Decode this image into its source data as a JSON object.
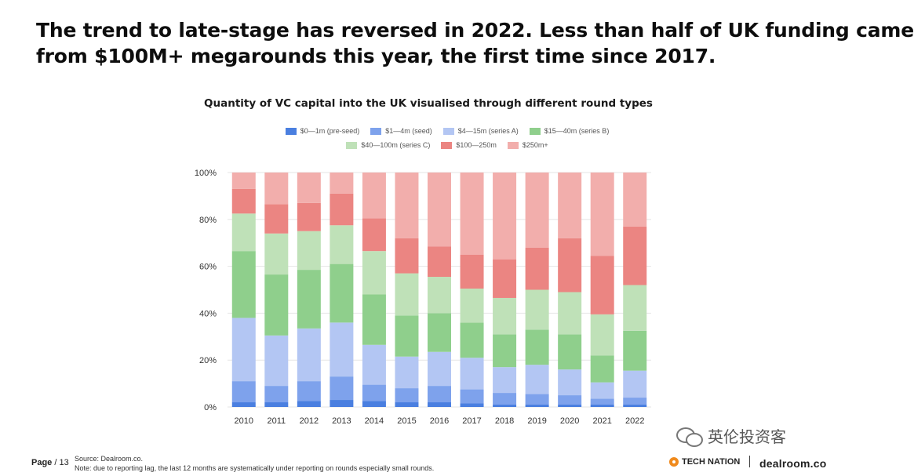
{
  "headline": {
    "line1": "The trend to late-stage has reversed in 2022. Less than half of UK funding came",
    "line2": "from $100M+ megarounds this year, the first time since 2017."
  },
  "footer": {
    "page_label": "Page",
    "page_number": "/ 13",
    "source": "Source: Dealroom.co.",
    "note": "Note: due to reporting lag, the last 12 months are systematically under reporting on rounds especially small rounds.",
    "brand_tech_nation": "TECH NATION",
    "brand_dealroom": "dealroom.co",
    "watermark": "英伦投资客"
  },
  "colors": {
    "preseed": "#4a7fe0",
    "seed": "#7ea2ec",
    "seriesA": "#b3c6f3",
    "seriesB": "#8fcf8c",
    "seriesC": "#bfe1b8",
    "r100_250": "#eb8582",
    "r250plus": "#f2aeac",
    "grid": "#e6e6e6",
    "axis_text": "#333333"
  },
  "chart_data": {
    "type": "bar",
    "stacked": true,
    "title": "Quantity of VC capital into the UK visualised through different round types",
    "xlabel": "",
    "ylabel": "",
    "ylim": [
      0,
      100
    ],
    "yticks": [
      "0%",
      "20%",
      "40%",
      "60%",
      "80%",
      "100%"
    ],
    "legend_position": "top",
    "categories": [
      "2010",
      "2011",
      "2012",
      "2013",
      "2014",
      "2015",
      "2016",
      "2017",
      "2018",
      "2019",
      "2020",
      "2021",
      "2022"
    ],
    "series": [
      {
        "name": "$0—1m (pre-seed)",
        "color": "#4a7fe0",
        "values": [
          2,
          2,
          2.5,
          3,
          2.5,
          2,
          2,
          1.5,
          1,
          1,
          1,
          1,
          1
        ]
      },
      {
        "name": "$1—4m (seed)",
        "color": "#7ea2ec",
        "values": [
          9,
          7,
          8.5,
          10,
          7,
          6,
          7,
          6,
          5,
          4.5,
          4,
          2.5,
          3
        ]
      },
      {
        "name": "$4—15m (series A)",
        "color": "#b3c6f3",
        "values": [
          27,
          21.5,
          22.5,
          23,
          17,
          13.5,
          14.5,
          13.5,
          11,
          12.5,
          11,
          7,
          11.5
        ]
      },
      {
        "name": "$15—40m (series B)",
        "color": "#8fcf8c",
        "values": [
          28.5,
          26,
          25,
          25,
          21.5,
          17.5,
          16.5,
          15,
          14,
          15,
          15,
          11.5,
          17
        ]
      },
      {
        "name": "$40—100m (series C)",
        "color": "#bfe1b8",
        "values": [
          16,
          17.5,
          16.5,
          16.5,
          18.5,
          18,
          15.5,
          14.5,
          15.5,
          17,
          18,
          17.5,
          19.5
        ]
      },
      {
        "name": "$100—250m",
        "color": "#eb8582",
        "values": [
          10.5,
          12.5,
          12,
          13.5,
          14,
          15,
          13,
          14.5,
          16.5,
          18,
          23,
          25,
          25
        ]
      },
      {
        "name": "$250m+",
        "color": "#f2aeac",
        "values": [
          7,
          13.5,
          13,
          9,
          19.5,
          28,
          31.5,
          35,
          37,
          32,
          28,
          35.5,
          23
        ]
      }
    ]
  }
}
